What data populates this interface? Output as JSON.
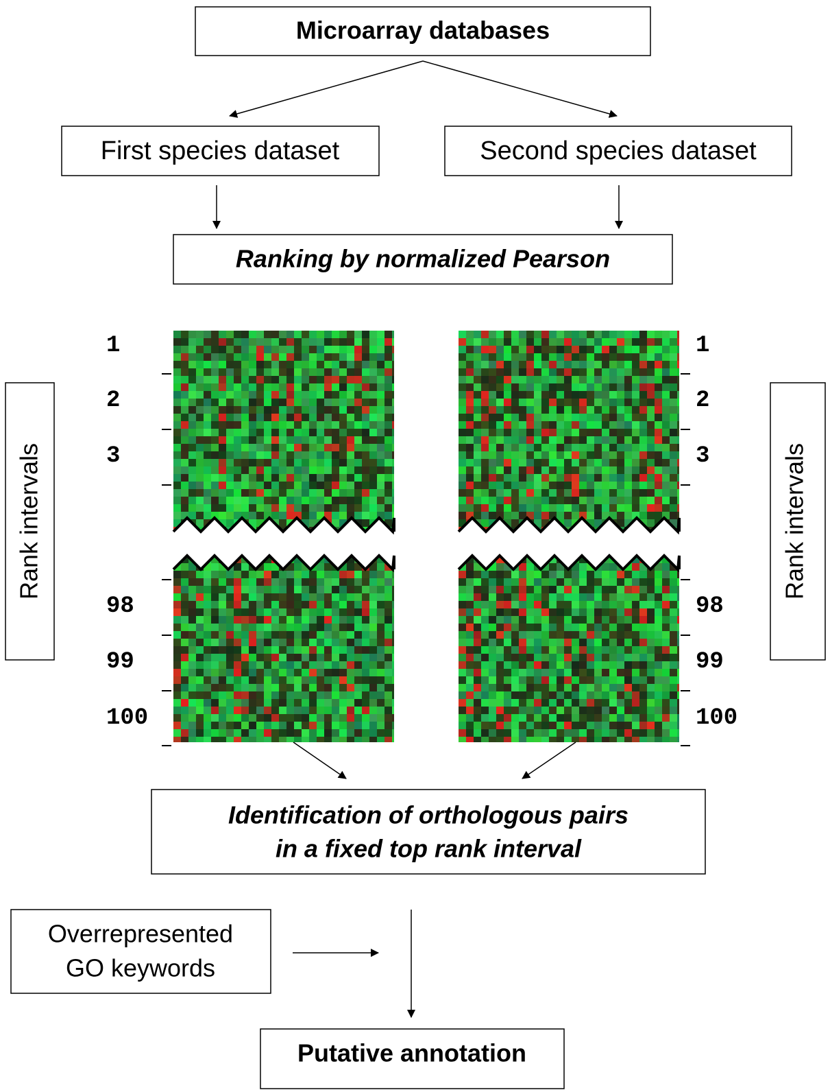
{
  "nodes": {
    "source": "Microarray databases",
    "first_dataset": "First species dataset",
    "second_dataset": "Second species dataset",
    "ranking": "Ranking by normalized Pearson",
    "identification": [
      "Identification of orthologous pairs",
      "in a fixed top rank interval"
    ],
    "go_keywords": [
      "Overrepresented",
      "GO keywords"
    ],
    "result": "Putative annotation"
  },
  "rank_labels": {
    "left": [
      "1",
      "2",
      "3",
      "98",
      "99",
      "100"
    ],
    "right": [
      "1",
      "2",
      "3",
      "98",
      "99",
      "100"
    ]
  },
  "axis_labels": {
    "left": "Rank intervals",
    "right": "Rank intervals"
  }
}
